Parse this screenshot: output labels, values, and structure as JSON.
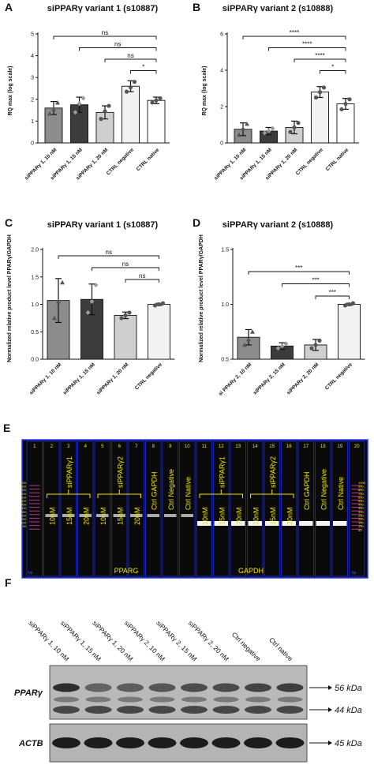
{
  "panels": {
    "A": {
      "letter": "A",
      "chart_data": {
        "type": "bar",
        "title": "siPPARγ variant 1 (s10887)",
        "ylabel": "RQ max (log scale)",
        "xlabel": "",
        "ylim": [
          0,
          5
        ],
        "yticks": [
          0,
          1,
          2,
          3,
          4,
          5
        ],
        "categories": [
          "siPPARγ 1, 10 nM",
          "siPPARγ 1, 15 nM",
          "siPPARγ 1, 20 nM",
          "CTRL negative",
          "CTRL native"
        ],
        "values": [
          1.6,
          1.75,
          1.4,
          2.6,
          1.95
        ],
        "errors": [
          0.3,
          0.35,
          0.3,
          0.25,
          0.15
        ],
        "points": [
          [
            1.35,
            1.55,
            1.85
          ],
          [
            1.4,
            1.8,
            2.05
          ],
          [
            1.1,
            1.45,
            1.7
          ],
          [
            2.35,
            2.55,
            2.8
          ],
          [
            1.85,
            1.95,
            2.05
          ]
        ],
        "bar_colors": [
          "#8c8c8c",
          "#3c3c3c",
          "#cfcfcf",
          "#f2f2f2",
          "#ffffff"
        ],
        "comparisons": [
          {
            "from": 0,
            "to": 4,
            "label": "ns"
          },
          {
            "from": 1,
            "to": 4,
            "label": "ns"
          },
          {
            "from": 2,
            "to": 4,
            "label": "ns"
          },
          {
            "from": 3,
            "to": 4,
            "label": "*"
          }
        ]
      }
    },
    "B": {
      "letter": "B",
      "chart_data": {
        "type": "bar",
        "title": "siPPARγ variant 2 (s10888)",
        "ylabel": "RQ max (log scale)",
        "xlabel": "",
        "ylim": [
          0,
          6
        ],
        "yticks": [
          0,
          2,
          4,
          6
        ],
        "categories": [
          "siPPARγ 1, 10 nM",
          "siPPARγ 1, 15 nM",
          "siPPARγ 1, 20 nM",
          "CTRL negative",
          "CTRL native"
        ],
        "values": [
          0.75,
          0.65,
          0.85,
          2.8,
          2.15
        ],
        "errors": [
          0.35,
          0.2,
          0.35,
          0.3,
          0.3
        ],
        "points": [
          [
            0.45,
            0.8,
            1.05
          ],
          [
            0.55,
            0.65,
            0.8
          ],
          [
            0.6,
            0.85,
            1.1
          ],
          [
            2.5,
            2.8,
            3.05
          ],
          [
            1.85,
            2.15,
            2.4
          ]
        ],
        "bar_colors": [
          "#8c8c8c",
          "#3c3c3c",
          "#cfcfcf",
          "#f2f2f2",
          "#ffffff"
        ],
        "comparisons": [
          {
            "from": 0,
            "to": 4,
            "label": "****"
          },
          {
            "from": 1,
            "to": 4,
            "label": "****"
          },
          {
            "from": 2,
            "to": 4,
            "label": "****"
          },
          {
            "from": 3,
            "to": 4,
            "label": "*"
          }
        ]
      }
    },
    "C": {
      "letter": "C",
      "chart_data": {
        "type": "bar",
        "title": "siPPARγ variant 1 (s10887)",
        "ylabel": "Normalized relative product level PPARγ/GAPDH",
        "xlabel": "",
        "ylim": [
          0,
          2.0
        ],
        "yticks": [
          0.0,
          0.5,
          1.0,
          1.5,
          2.0
        ],
        "categories": [
          "siPPARγ 1, 10 nM",
          "siPPARγ 1, 15 nM",
          "siPPARγ 1, 20 nM",
          "CTRL negative"
        ],
        "values": [
          1.07,
          1.09,
          0.8,
          1.0
        ],
        "errors": [
          0.4,
          0.28,
          0.06,
          0.02
        ],
        "points": [
          [
            0.75,
            1.05,
            1.4
          ],
          [
            0.85,
            1.05,
            1.35
          ],
          [
            0.75,
            0.8,
            0.85
          ],
          [
            0.98,
            1.0,
            1.02
          ]
        ],
        "bar_colors": [
          "#8c8c8c",
          "#3c3c3c",
          "#cfcfcf",
          "#f2f2f2"
        ],
        "comparisons": [
          {
            "from": 0,
            "to": 3,
            "label": "ns"
          },
          {
            "from": 1,
            "to": 3,
            "label": "ns"
          },
          {
            "from": 2,
            "to": 3,
            "label": "ns"
          }
        ]
      }
    },
    "D": {
      "letter": "D",
      "chart_data": {
        "type": "bar",
        "title": "siPPARγ variant 2 (s10888)",
        "ylabel": "Normalized relative product level PPARγ/GAPDH",
        "xlabel": "",
        "ylim": [
          0.5,
          1.5
        ],
        "yticks": [
          0.5,
          1.0,
          1.5
        ],
        "categories": [
          "si PPARγ 2, 10 nM",
          "siPPARγ 2, 15 nM",
          "siPPARγ 2, 20 nM",
          "CTRL negative"
        ],
        "values": [
          0.7,
          0.62,
          0.63,
          1.0
        ],
        "errors": [
          0.07,
          0.03,
          0.05,
          0.01
        ],
        "points": [
          [
            0.63,
            0.68,
            0.75
          ],
          [
            0.6,
            0.62,
            0.64
          ],
          [
            0.6,
            0.63,
            0.67
          ],
          [
            0.99,
            1.0,
            1.01
          ]
        ],
        "bar_colors": [
          "#8c8c8c",
          "#3c3c3c",
          "#cfcfcf",
          "#f2f2f2"
        ],
        "comparisons": [
          {
            "from": 0,
            "to": 3,
            "label": "***"
          },
          {
            "from": 1,
            "to": 3,
            "label": "***"
          },
          {
            "from": 2,
            "to": 3,
            "label": "***"
          }
        ]
      }
    }
  },
  "gel": {
    "letter": "E",
    "lane_numbers": [
      "1",
      "2",
      "3",
      "4",
      "5",
      "6",
      "7",
      "8",
      "9",
      "10",
      "11",
      "12",
      "13",
      "14",
      "15",
      "16",
      "17",
      "18",
      "19",
      "20"
    ],
    "ladder_left": [
      "1000",
      "900",
      "800",
      "700",
      "600",
      "500",
      "400",
      "300",
      "250",
      "200",
      "150",
      "100",
      "50"
    ],
    "ladder_right": [
      "1000",
      "900",
      "800",
      "700",
      "600",
      "500",
      "400",
      "350",
      "300",
      "250",
      "200",
      "150",
      "100",
      "50"
    ],
    "ladder_bottom_left": "bp",
    "ladder_bottom_right": "bp",
    "group1_title": "siPPARγ1",
    "group2_title": "siPPARγ2",
    "group3_title": "siPPARγ1",
    "group4_title": "siPPARγ2",
    "conc": [
      "10nM",
      "15nM",
      "20nM"
    ],
    "ctrl": [
      "Ctrl GAPDH",
      "Ctrl Negative",
      "Ctrl Native"
    ],
    "footer_left": "PPARG",
    "footer_right": "GAPDH"
  },
  "western": {
    "letter": "F",
    "lanes": [
      "siPPARγ 1, 10 nM",
      "siPPARγ 1, 15 nM",
      "siPPARγ 1, 20 nM",
      "siPPARγ 2, 10 nM",
      "siPPARγ 2, 15 nM",
      "siPPARγ 2, 20 nM",
      "Ctrl negative",
      "Ctrl native"
    ],
    "row1_label": "PPARγ",
    "row2_label": "ACTB",
    "kda": [
      "56 kDa",
      "44 kDa",
      "45 kDa"
    ]
  }
}
